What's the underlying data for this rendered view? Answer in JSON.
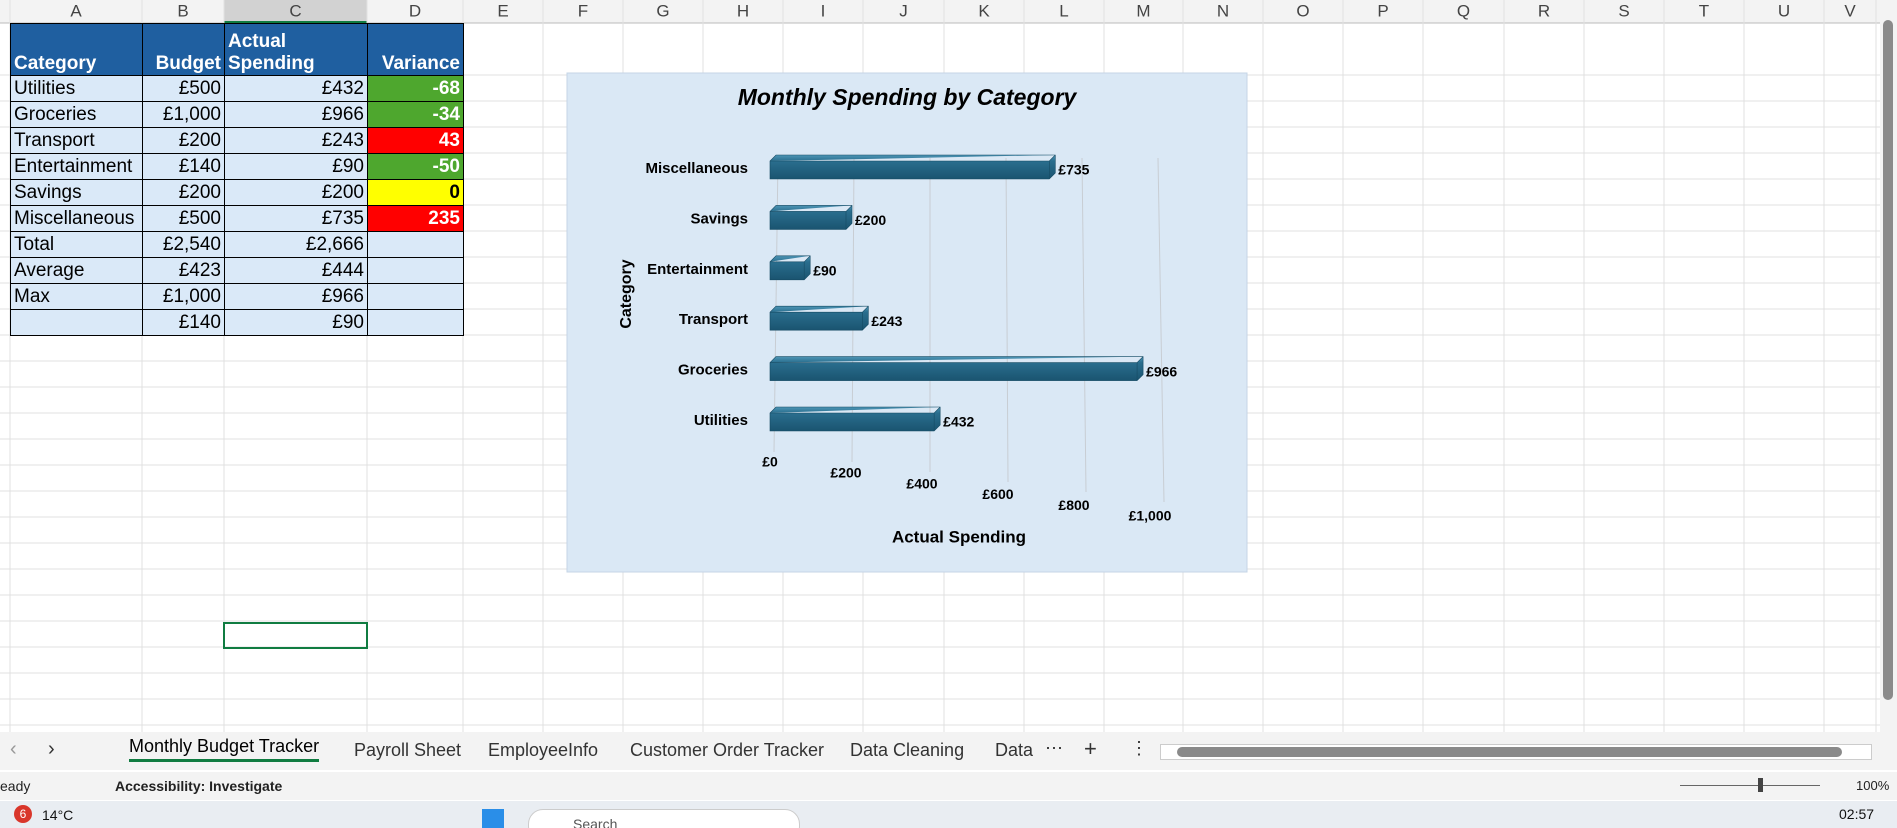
{
  "sheet": {
    "columns": [
      "A",
      "B",
      "C",
      "D",
      "E",
      "F",
      "G",
      "H",
      "I",
      "J",
      "K",
      "L",
      "M",
      "N",
      "O",
      "P",
      "Q",
      "R",
      "S",
      "T",
      "U",
      "V"
    ],
    "header": [
      "Category",
      "Budget",
      "Actual Spending",
      "Variance"
    ],
    "rows": [
      [
        "Utilities",
        "£500",
        "£432",
        "-68"
      ],
      [
        "Groceries",
        "£1,000",
        "£966",
        "-34"
      ],
      [
        "Transport",
        "£200",
        "£243",
        "43"
      ],
      [
        "Entertainment",
        "£140",
        "£90",
        "-50"
      ],
      [
        "Savings",
        "£200",
        "£200",
        "0"
      ],
      [
        "Miscellaneous",
        "£500",
        "£735",
        "235"
      ],
      [
        "Total",
        "£2,540",
        "£2,666"
      ],
      [
        "Average",
        "£423",
        "£444"
      ],
      [
        "Max",
        "£1,000",
        "£966"
      ],
      [
        null,
        "£140",
        "£90"
      ]
    ],
    "tabs": [
      "Monthly Budget Tracker",
      "Payroll Sheet",
      "EmployeeInfo",
      "Customer Order Tracker",
      "Data Cleaning",
      "Data"
    ],
    "status": "eady",
    "accessibility": "Accessibility: Investigate",
    "zoom": "100%"
  },
  "taskbar": {
    "notifications": "6",
    "weather": "14°C",
    "search": "Search",
    "time": "02:57"
  },
  "chart_data": {
    "type": "bar",
    "title": "Monthly  Spending by Category",
    "x_label": "Actual Spending",
    "y_label": "Category",
    "categories": [
      "Utilities",
      "Groceries",
      "Transport",
      "Entertainment",
      "Savings",
      "Miscellaneous"
    ],
    "values": [
      432,
      966,
      243,
      90,
      200,
      735
    ],
    "value_labels": [
      "£432",
      "£966",
      "£243",
      "£90",
      "£200",
      "£735"
    ],
    "color": "#1f5c7a",
    "xlim": [
      0,
      1000
    ],
    "xticks": [
      {
        "value": 0,
        "label": "£0"
      },
      {
        "value": 200,
        "label": "£200"
      },
      {
        "value": 400,
        "label": "£400"
      },
      {
        "value": 600,
        "label": "£600"
      },
      {
        "value": 800,
        "label": "£800"
      },
      {
        "value": 1000,
        "label": "£1,000"
      }
    ],
    "grid": true
  }
}
